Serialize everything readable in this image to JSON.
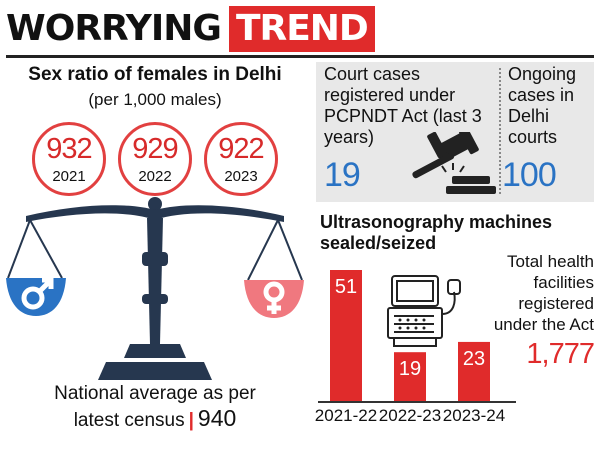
{
  "title": {
    "part1": "WORRYING",
    "part2": "TREND"
  },
  "sex_ratio": {
    "title": "Sex ratio of females in Delhi",
    "subtitle": "(per 1,000 males)",
    "items": [
      {
        "value": "932",
        "year": "2021"
      },
      {
        "value": "929",
        "year": "2022"
      },
      {
        "value": "922",
        "year": "2023"
      }
    ],
    "national_text_line1": "National average as per",
    "national_text_line2": "latest census",
    "national_separator": "|",
    "national_value": "940",
    "icons": [
      "scale-of-justice-icon",
      "male-symbol-icon",
      "female-symbol-icon"
    ]
  },
  "court": {
    "cases_label": "Court cases registered under PCPNDT Act (last 3 years)",
    "cases_value": "19",
    "ongoing_label": "Ongoing cases in Delhi courts",
    "ongoing_value": "100",
    "icon": "gavel-icon"
  },
  "ultrasound": {
    "title": "Ultrasonography machines sealed/seized",
    "icon": "ultrasound-machine-icon"
  },
  "facilities": {
    "label": "Total health facilities registered under the Act",
    "value": "1,777"
  },
  "colors": {
    "accent": "#e02b2b",
    "blue": "#2a73c4",
    "scale": "#26374f",
    "pink": "#f0787f"
  },
  "chart_data": {
    "type": "bar",
    "title": "Ultrasonography machines sealed/seized",
    "categories": [
      "2021-22",
      "2022-23",
      "2023-24"
    ],
    "values": [
      51,
      19,
      23
    ],
    "ylim": [
      0,
      51
    ],
    "grid": false
  }
}
